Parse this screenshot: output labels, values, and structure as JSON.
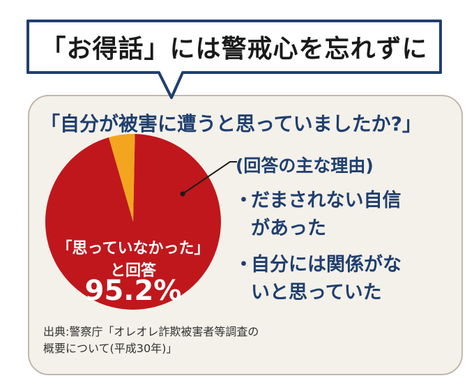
{
  "bubble": {
    "text": "「お得話」には警戒心を忘れずに"
  },
  "question": "「自分が被害に遭うと思っていましたか?」",
  "pie": {
    "label_line1": "「思っていなかった」",
    "label_line2": "と回答",
    "percent_label": "95.2%"
  },
  "reasons": {
    "title": "(回答の主な理由)",
    "items": [
      {
        "bullet": "・",
        "line1": "だまされない自信",
        "line2": "があった"
      },
      {
        "bullet": "・",
        "line1": "自分には関係がな",
        "line2": "いと思っていた"
      }
    ]
  },
  "source": {
    "line1": "出典:警察庁「オレオレ詐欺被害者等調査の",
    "line2": "概要について(平成30年)」"
  },
  "colors": {
    "main_slice": "#c0171c",
    "minor_slice": "#f3a51f",
    "navy": "#1f3f6f",
    "card_bg": "#f4f1ea"
  },
  "chart_data": {
    "type": "pie",
    "title": "「自分が被害に遭うと思っていましたか?」",
    "slices": [
      {
        "label": "「思っていなかった」と回答",
        "value": 95.2
      },
      {
        "value": 4.8
      }
    ]
  }
}
